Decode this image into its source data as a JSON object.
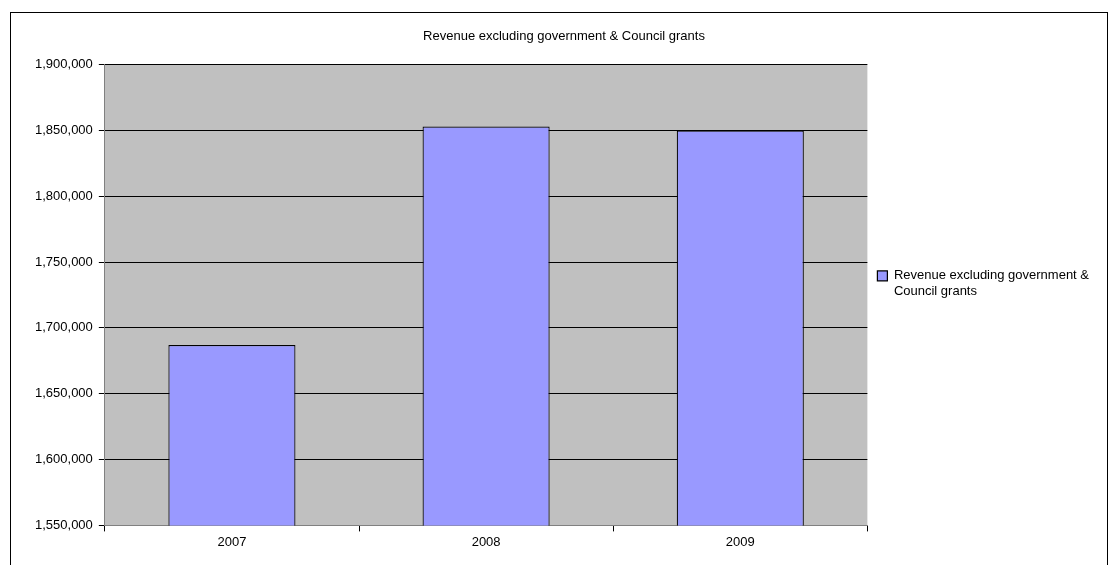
{
  "chart_data": {
    "type": "bar",
    "title": "Revenue excluding government & Council grants",
    "categories": [
      "2007",
      "2008",
      "2009"
    ],
    "series": [
      {
        "name": "Revenue excluding government & Council grants",
        "color": "#9999ff",
        "values": [
          1687000,
          1853000,
          1850000
        ]
      }
    ],
    "ylim": [
      1550000,
      1900000
    ],
    "yticks": [
      {
        "value": 1550000,
        "label": "1,550,000"
      },
      {
        "value": 1600000,
        "label": "1,600,000"
      },
      {
        "value": 1650000,
        "label": "1,650,000"
      },
      {
        "value": 1700000,
        "label": "1,700,000"
      },
      {
        "value": 1750000,
        "label": "1,750,000"
      },
      {
        "value": 1800000,
        "label": "1,800,000"
      },
      {
        "value": 1850000,
        "label": "1,850,000"
      },
      {
        "value": 1900000,
        "label": "1,900,000"
      }
    ],
    "grid": "y",
    "legend": "right"
  }
}
